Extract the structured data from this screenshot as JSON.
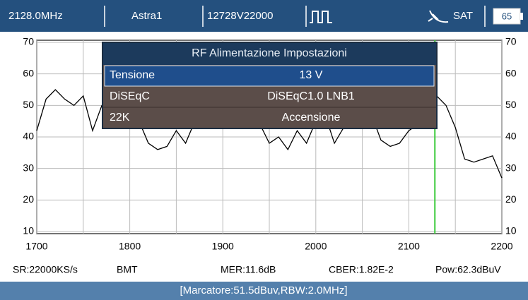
{
  "header": {
    "frequency": "2128.0MHz",
    "satellite": "Astra1",
    "transponder": "12728V22000",
    "mode": "SAT",
    "battery": "65"
  },
  "chart_data": {
    "type": "line",
    "x": [
      1700,
      1710,
      1720,
      1730,
      1740,
      1750,
      1760,
      1770,
      1780,
      1790,
      1800,
      1810,
      1820,
      1830,
      1840,
      1850,
      1860,
      1870,
      1880,
      1890,
      1900,
      1910,
      1920,
      1930,
      1940,
      1950,
      1960,
      1970,
      1980,
      1990,
      2000,
      2010,
      2020,
      2030,
      2040,
      2050,
      2060,
      2070,
      2080,
      2090,
      2100,
      2110,
      2120,
      2130,
      2140,
      2150,
      2160,
      2170,
      2180,
      2190,
      2200
    ],
    "series": [
      {
        "color": "#000000",
        "values": [
          42,
          52,
          55,
          52,
          50,
          53,
          42,
          50,
          52,
          50,
          51,
          45,
          38,
          36,
          37,
          42,
          38,
          45,
          48,
          49,
          47,
          49,
          48,
          49,
          44,
          38,
          40,
          36,
          42,
          38,
          45,
          47,
          38,
          43,
          47,
          48,
          47,
          39,
          37,
          38,
          42,
          44,
          54,
          53,
          50,
          43,
          33,
          32,
          33,
          34,
          27
        ]
      }
    ],
    "xlim": [
      1700,
      2200
    ],
    "ylim": [
      10,
      70
    ],
    "xticks": [
      1700,
      1800,
      1900,
      2000,
      2100,
      2200
    ],
    "xminor": [
      1750,
      1850,
      1950,
      2050,
      2150
    ],
    "yticks": [
      10,
      20,
      30,
      40,
      50,
      60,
      70
    ],
    "grid": true,
    "marker_x": 2128,
    "marker_color": "#3ccb3c"
  },
  "dialog": {
    "title": "RF Alimentazione Impostazioni",
    "rows": [
      {
        "label": "Tensione",
        "value": "13 V"
      },
      {
        "label": "DiSEqC",
        "value": "DiSEqC1.0 LNB1"
      },
      {
        "label": "22K",
        "value": "Accensione"
      }
    ]
  },
  "status": [
    "SR:22000KS/s",
    "BMT",
    "MER:11.6dB",
    "CBER:1.82E-2",
    "Pow:62.3dBuV"
  ],
  "footer": "[Marcatore:51.5dBuv,RBW:2.0MHz]"
}
